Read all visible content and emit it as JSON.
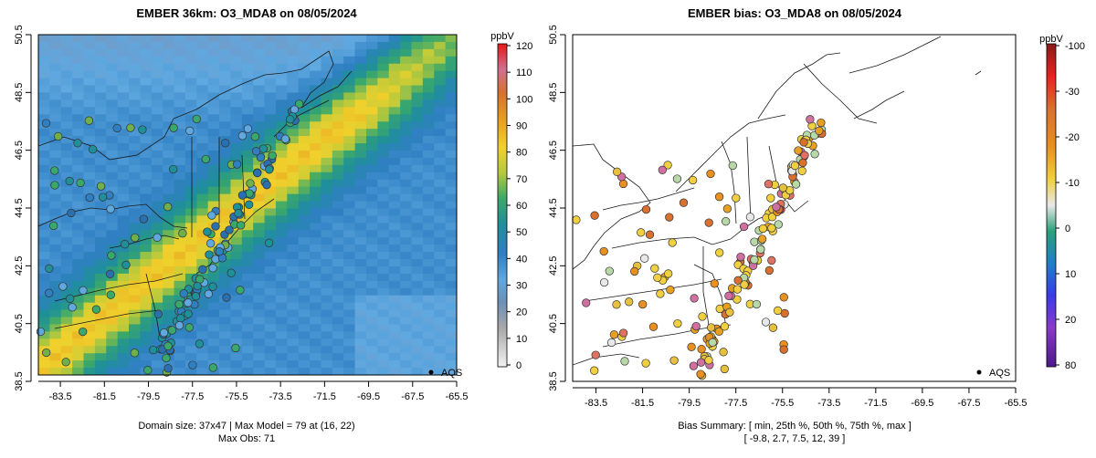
{
  "chart_data": [
    {
      "type": "heatmap",
      "title": "EMBER 36km: O3_MDA8 on 08/05/2024",
      "x_ticks": [
        "-83.5",
        "-81.5",
        "-79.5",
        "-77.5",
        "-75.5",
        "-73.5",
        "-71.5",
        "-69.5",
        "-67.5",
        "-65.5"
      ],
      "y_ticks": [
        "38.5",
        "40.5",
        "42.5",
        "44.5",
        "46.5",
        "48.5",
        "50.5"
      ],
      "xlim": [
        -84.5,
        -65.5
      ],
      "ylim": [
        38.5,
        50.5
      ],
      "colorbar": {
        "unit": "ppbV",
        "labels": [
          "0",
          "10",
          "20",
          "30",
          "40",
          "50",
          "60",
          "70",
          "80",
          "90",
          "100",
          "110",
          "120"
        ],
        "range": [
          0,
          120
        ]
      },
      "legend_label": "AQS",
      "caption_line1": "Domain size: 37x47 | Max Model = 79 at (16, 22)",
      "caption_line2": "Max Obs: 71",
      "domain_size": "37x47",
      "max_model": 79,
      "max_obs": 71
    },
    {
      "type": "scatter",
      "title": "EMBER bias: O3_MDA8 on 08/05/2024",
      "x_ticks": [
        "-83.5",
        "-81.5",
        "-79.5",
        "-77.5",
        "-75.5",
        "-73.5",
        "-71.5",
        "-69.5",
        "-67.5",
        "-65.5"
      ],
      "y_ticks": [
        "38.5",
        "40.5",
        "42.5",
        "44.5",
        "46.5",
        "48.5",
        "50.5"
      ],
      "xlim": [
        -84.5,
        -65.5
      ],
      "ylim": [
        38.5,
        50.5
      ],
      "colorbar": {
        "unit": "ppbV",
        "labels": [
          "80",
          "20",
          "10",
          "0",
          "-10",
          "-20",
          "-30",
          "-100"
        ]
      },
      "legend_label": "AQS",
      "caption_line1": "Bias Summary: [ min, 25th %, 50th %, 75th %, max ]",
      "caption_line2": "[ -9.8,   2.7,   7.5,   12,   39 ]",
      "bias_summary": {
        "min": -9.8,
        "p25": 2.7,
        "p50": 7.5,
        "p75": 12,
        "max": 39
      }
    }
  ]
}
